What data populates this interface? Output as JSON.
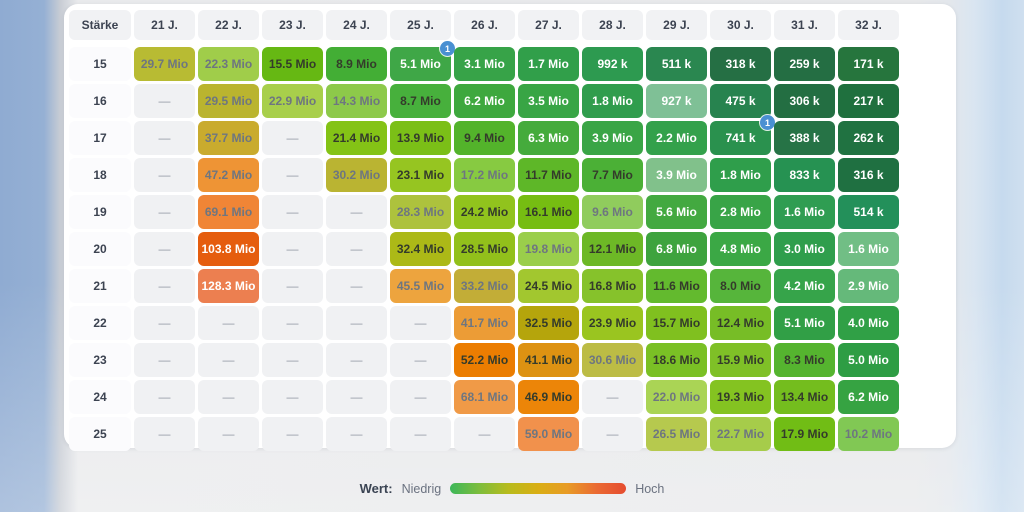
{
  "chart_data": {
    "type": "heatmap",
    "corner_label": "Stärke",
    "columns": [
      "21 J.",
      "22 J.",
      "23 J.",
      "24 J.",
      "25 J.",
      "26 J.",
      "27 J.",
      "28 J.",
      "29 J.",
      "30 J.",
      "31 J.",
      "32 J."
    ],
    "rows": [
      {
        "strength": "15",
        "cells": [
          {
            "label": "29.7 Mio",
            "mio": 29.7,
            "bg": "#b8bb33",
            "tone": "muted"
          },
          {
            "label": "22.3 Mio",
            "mio": 22.3,
            "bg": "#a0cd4a",
            "tone": "muted"
          },
          {
            "label": "15.5 Mio",
            "mio": 15.5,
            "bg": "#66b813",
            "tone": "dark"
          },
          {
            "label": "8.9 Mio",
            "mio": 8.9,
            "bg": "#43ae35",
            "tone": "dark"
          },
          {
            "label": "5.1 Mio",
            "mio": 5.1,
            "bg": "#3fa747",
            "tone": "white",
            "badge": "1"
          },
          {
            "label": "3.1 Mio",
            "mio": 3.1,
            "bg": "#37a348",
            "tone": "white"
          },
          {
            "label": "1.7 Mio",
            "mio": 1.7,
            "bg": "#319f4a",
            "tone": "white"
          },
          {
            "label": "992 k",
            "mio": 0.992,
            "bg": "#2d9a50",
            "tone": "white"
          },
          {
            "label": "511 k",
            "mio": 0.511,
            "bg": "#2a8750",
            "tone": "white"
          },
          {
            "label": "318 k",
            "mio": 0.318,
            "bg": "#256f44",
            "tone": "white"
          },
          {
            "label": "259 k",
            "mio": 0.259,
            "bg": "#246e43",
            "tone": "white"
          },
          {
            "label": "171 k",
            "mio": 0.171,
            "bg": "#26753d",
            "tone": "white"
          }
        ]
      },
      {
        "strength": "16",
        "cells": [
          null,
          {
            "label": "29.5 Mio",
            "mio": 29.5,
            "bg": "#bab42f",
            "tone": "muted"
          },
          {
            "label": "22.9 Mio",
            "mio": 22.9,
            "bg": "#a8cf4b",
            "tone": "muted"
          },
          {
            "label": "14.3 Mio",
            "mio": 14.3,
            "bg": "#8dc94a",
            "tone": "muted"
          },
          {
            "label": "8.7 Mio",
            "mio": 8.7,
            "bg": "#47b03c",
            "tone": "dark"
          },
          {
            "label": "6.2 Mio",
            "mio": 6.2,
            "bg": "#3ea83e",
            "tone": "white"
          },
          {
            "label": "3.5 Mio",
            "mio": 3.5,
            "bg": "#38a545",
            "tone": "white"
          },
          {
            "label": "1.8 Mio",
            "mio": 1.8,
            "bg": "#309d4d",
            "tone": "white"
          },
          {
            "label": "927 k",
            "mio": 0.927,
            "bg": "#7fc096",
            "tone": "white"
          },
          {
            "label": "475 k",
            "mio": 0.475,
            "bg": "#27834f",
            "tone": "white"
          },
          {
            "label": "306 k",
            "mio": 0.306,
            "bg": "#236e42",
            "tone": "white"
          },
          {
            "label": "217 k",
            "mio": 0.217,
            "bg": "#1f703e",
            "tone": "white"
          }
        ]
      },
      {
        "strength": "17",
        "cells": [
          null,
          {
            "label": "37.7 Mio",
            "mio": 37.7,
            "bg": "#c9ab2e",
            "tone": "muted"
          },
          null,
          {
            "label": "21.4 Mio",
            "mio": 21.4,
            "bg": "#84c316",
            "tone": "dark"
          },
          {
            "label": "13.9 Mio",
            "mio": 13.9,
            "bg": "#7bbf17",
            "tone": "dark"
          },
          {
            "label": "9.4 Mio",
            "mio": 9.4,
            "bg": "#53b32b",
            "tone": "dark"
          },
          {
            "label": "6.3 Mio",
            "mio": 6.3,
            "bg": "#45ab3c",
            "tone": "white"
          },
          {
            "label": "3.9 Mio",
            "mio": 3.9,
            "bg": "#3aa546",
            "tone": "white"
          },
          {
            "label": "2.2 Mio",
            "mio": 2.2,
            "bg": "#33a14b",
            "tone": "white"
          },
          {
            "label": "741 k",
            "mio": 0.741,
            "bg": "#2a914e",
            "tone": "white",
            "badge": "1"
          },
          {
            "label": "388 k",
            "mio": 0.388,
            "bg": "#267346",
            "tone": "white"
          },
          {
            "label": "262 k",
            "mio": 0.262,
            "bg": "#207241",
            "tone": "white"
          }
        ]
      },
      {
        "strength": "18",
        "cells": [
          null,
          {
            "label": "47.2 Mio",
            "mio": 47.2,
            "bg": "#ee9435",
            "tone": "muted"
          },
          null,
          {
            "label": "30.2 Mio",
            "mio": 30.2,
            "bg": "#bab432",
            "tone": "muted"
          },
          {
            "label": "23.1 Mio",
            "mio": 23.1,
            "bg": "#96c521",
            "tone": "dark"
          },
          {
            "label": "17.2 Mio",
            "mio": 17.2,
            "bg": "#87ca41",
            "tone": "muted"
          },
          {
            "label": "11.7 Mio",
            "mio": 11.7,
            "bg": "#5eb728",
            "tone": "dark"
          },
          {
            "label": "7.7 Mio",
            "mio": 7.7,
            "bg": "#4bb036",
            "tone": "dark"
          },
          {
            "label": "3.9 Mio",
            "mio": 3.9,
            "bg": "#81c18b",
            "tone": "white"
          },
          {
            "label": "1.8 Mio",
            "mio": 1.8,
            "bg": "#2f9e4b",
            "tone": "white"
          },
          {
            "label": "833 k",
            "mio": 0.833,
            "bg": "#269252",
            "tone": "white"
          },
          {
            "label": "316 k",
            "mio": 0.316,
            "bg": "#1f7041",
            "tone": "white"
          }
        ]
      },
      {
        "strength": "19",
        "cells": [
          null,
          {
            "label": "69.1 Mio",
            "mio": 69.1,
            "bg": "#f08536",
            "tone": "muted"
          },
          null,
          null,
          {
            "label": "28.3 Mio",
            "mio": 28.3,
            "bg": "#adc23d",
            "tone": "muted"
          },
          {
            "label": "24.2 Mio",
            "mio": 24.2,
            "bg": "#91c31d",
            "tone": "dark"
          },
          {
            "label": "16.1 Mio",
            "mio": 16.1,
            "bg": "#76bd12",
            "tone": "dark"
          },
          {
            "label": "9.6 Mio",
            "mio": 9.6,
            "bg": "#90cc5d",
            "tone": "muted"
          },
          {
            "label": "5.6 Mio",
            "mio": 5.6,
            "bg": "#43a940",
            "tone": "white"
          },
          {
            "label": "2.8 Mio",
            "mio": 2.8,
            "bg": "#38a447",
            "tone": "white"
          },
          {
            "label": "1.6 Mio",
            "mio": 1.6,
            "bg": "#2f9d52",
            "tone": "white"
          },
          {
            "label": "514 k",
            "mio": 0.514,
            "bg": "#23905a",
            "tone": "white"
          }
        ]
      },
      {
        "strength": "20",
        "cells": [
          null,
          {
            "label": "103.8 Mio",
            "mio": 103.8,
            "bg": "#e55d0e",
            "tone": "white"
          },
          null,
          null,
          {
            "label": "32.4 Mio",
            "mio": 32.4,
            "bg": "#acb917",
            "tone": "dark"
          },
          {
            "label": "28.5 Mio",
            "mio": 28.5,
            "bg": "#92c01b",
            "tone": "dark"
          },
          {
            "label": "19.8 Mio",
            "mio": 19.8,
            "bg": "#9ace4b",
            "tone": "muted"
          },
          {
            "label": "12.1 Mio",
            "mio": 12.1,
            "bg": "#6db826",
            "tone": "dark"
          },
          {
            "label": "6.8 Mio",
            "mio": 6.8,
            "bg": "#3ea33e",
            "tone": "white"
          },
          {
            "label": "4.8 Mio",
            "mio": 4.8,
            "bg": "#3ba845",
            "tone": "white"
          },
          {
            "label": "3.0 Mio",
            "mio": 3.0,
            "bg": "#2f9e4c",
            "tone": "white"
          },
          {
            "label": "1.6 Mio",
            "mio": 1.6,
            "bg": "#71be85",
            "tone": "white"
          }
        ]
      },
      {
        "strength": "21",
        "cells": [
          null,
          {
            "label": "128.3 Mio",
            "mio": 128.3,
            "bg": "#ec7f50",
            "tone": "white"
          },
          null,
          null,
          {
            "label": "45.5 Mio",
            "mio": 45.5,
            "bg": "#eda43e",
            "tone": "muted"
          },
          {
            "label": "33.2 Mio",
            "mio": 33.2,
            "bg": "#c2ad37",
            "tone": "muted"
          },
          {
            "label": "24.5 Mio",
            "mio": 24.5,
            "bg": "#a2c72f",
            "tone": "dark"
          },
          {
            "label": "16.8 Mio",
            "mio": 16.8,
            "bg": "#86c22b",
            "tone": "dark"
          },
          {
            "label": "11.6 Mio",
            "mio": 11.6,
            "bg": "#63ba2e",
            "tone": "dark"
          },
          {
            "label": "8.0 Mio",
            "mio": 8.0,
            "bg": "#56b53b",
            "tone": "dark"
          },
          {
            "label": "4.2 Mio",
            "mio": 4.2,
            "bg": "#36a44a",
            "tone": "white"
          },
          {
            "label": "2.9 Mio",
            "mio": 2.9,
            "bg": "#65b97a",
            "tone": "white"
          }
        ]
      },
      {
        "strength": "22",
        "cells": [
          null,
          null,
          null,
          null,
          null,
          {
            "label": "41.7 Mio",
            "mio": 41.7,
            "bg": "#ec9c36",
            "tone": "muted"
          },
          {
            "label": "32.5 Mio",
            "mio": 32.5,
            "bg": "#b5a50c",
            "tone": "dark"
          },
          {
            "label": "23.9 Mio",
            "mio": 23.9,
            "bg": "#9ac520",
            "tone": "dark"
          },
          {
            "label": "15.7 Mio",
            "mio": 15.7,
            "bg": "#80c01f",
            "tone": "dark"
          },
          {
            "label": "12.4 Mio",
            "mio": 12.4,
            "bg": "#77bd26",
            "tone": "dark"
          },
          {
            "label": "5.1 Mio",
            "mio": 5.1,
            "bg": "#319f46",
            "tone": "white"
          },
          {
            "label": "4.0 Mio",
            "mio": 4.0,
            "bg": "#30a046",
            "tone": "white"
          }
        ]
      },
      {
        "strength": "23",
        "cells": [
          null,
          null,
          null,
          null,
          null,
          {
            "label": "52.2 Mio",
            "mio": 52.2,
            "bg": "#eb7d01",
            "tone": "dark"
          },
          {
            "label": "41.1 Mio",
            "mio": 41.1,
            "bg": "#dd9212",
            "tone": "dark"
          },
          {
            "label": "30.6 Mio",
            "mio": 30.6,
            "bg": "#bcbc45",
            "tone": "muted"
          },
          {
            "label": "18.6 Mio",
            "mio": 18.6,
            "bg": "#7ac025",
            "tone": "dark"
          },
          {
            "label": "15.9 Mio",
            "mio": 15.9,
            "bg": "#7fc027",
            "tone": "dark"
          },
          {
            "label": "8.3 Mio",
            "mio": 8.3,
            "bg": "#55b42f",
            "tone": "dark"
          },
          {
            "label": "5.0 Mio",
            "mio": 5.0,
            "bg": "#2e9d44",
            "tone": "white"
          }
        ]
      },
      {
        "strength": "24",
        "cells": [
          null,
          null,
          null,
          null,
          null,
          {
            "label": "68.1 Mio",
            "mio": 68.1,
            "bg": "#f09a47",
            "tone": "muted"
          },
          {
            "label": "46.9 Mio",
            "mio": 46.9,
            "bg": "#ec8508",
            "tone": "dark"
          },
          null,
          {
            "label": "22.0 Mio",
            "mio": 22.0,
            "bg": "#aad455",
            "tone": "muted"
          },
          {
            "label": "19.3 Mio",
            "mio": 19.3,
            "bg": "#84c321",
            "tone": "dark"
          },
          {
            "label": "13.4 Mio",
            "mio": 13.4,
            "bg": "#74bd1e",
            "tone": "dark"
          },
          {
            "label": "6.2 Mio",
            "mio": 6.2,
            "bg": "#36a342",
            "tone": "white"
          }
        ]
      },
      {
        "strength": "25",
        "cells": [
          null,
          null,
          null,
          null,
          null,
          null,
          {
            "label": "59.0 Mio",
            "mio": 59.0,
            "bg": "#f1914c",
            "tone": "muted"
          },
          null,
          {
            "label": "26.5 Mio",
            "mio": 26.5,
            "bg": "#b6c94e",
            "tone": "muted"
          },
          {
            "label": "22.7 Mio",
            "mio": 22.7,
            "bg": "#a6cc4a",
            "tone": "muted"
          },
          {
            "label": "17.9 Mio",
            "mio": 17.9,
            "bg": "#71bd15",
            "tone": "dark"
          },
          {
            "label": "10.2 Mio",
            "mio": 10.2,
            "bg": "#81c854",
            "tone": "muted"
          }
        ]
      }
    ],
    "empty_cell_text": "—",
    "legend": {
      "label": "Wert:",
      "low": "Niedrig",
      "high": "Hoch",
      "gradient": [
        "#3db75a",
        "#7dbd3c",
        "#b8bb1d",
        "#d9ae14",
        "#e89b26",
        "#ea6a33",
        "#e54c30"
      ]
    },
    "badge_color": "#4a90d2"
  }
}
